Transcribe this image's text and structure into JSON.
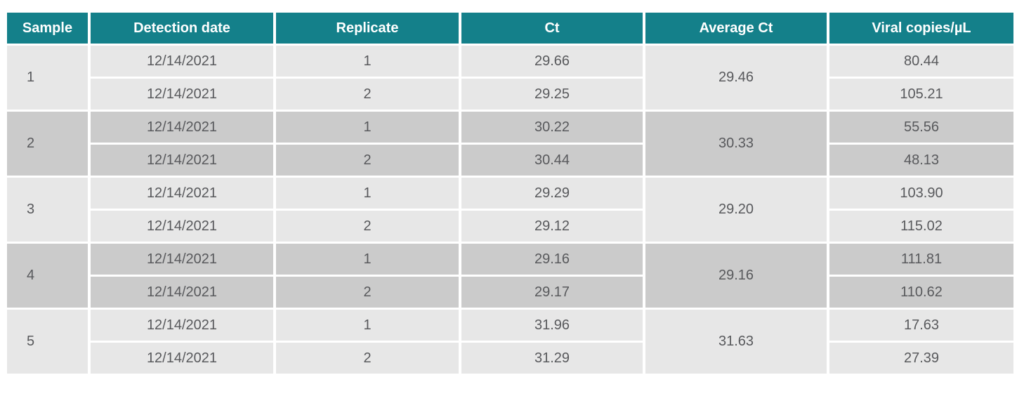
{
  "table": {
    "columns": [
      "Sample",
      "Detection date",
      "Replicate",
      "Ct",
      "Average Ct",
      "Viral copies/µL"
    ],
    "groups": [
      {
        "sample": "1",
        "average_ct": "29.46",
        "rows": [
          {
            "date": "12/14/2021",
            "replicate": "1",
            "ct": "29.66",
            "viral_copies": "80.44"
          },
          {
            "date": "12/14/2021",
            "replicate": "2",
            "ct": "29.25",
            "viral_copies": "105.21"
          }
        ]
      },
      {
        "sample": "2",
        "average_ct": "30.33",
        "rows": [
          {
            "date": "12/14/2021",
            "replicate": "1",
            "ct": "30.22",
            "viral_copies": "55.56"
          },
          {
            "date": "12/14/2021",
            "replicate": "2",
            "ct": "30.44",
            "viral_copies": "48.13"
          }
        ]
      },
      {
        "sample": "3",
        "average_ct": "29.20",
        "rows": [
          {
            "date": "12/14/2021",
            "replicate": "1",
            "ct": "29.29",
            "viral_copies": "103.90"
          },
          {
            "date": "12/14/2021",
            "replicate": "2",
            "ct": "29.12",
            "viral_copies": "115.02"
          }
        ]
      },
      {
        "sample": "4",
        "average_ct": "29.16",
        "rows": [
          {
            "date": "12/14/2021",
            "replicate": "1",
            "ct": "29.16",
            "viral_copies": "111.81"
          },
          {
            "date": "12/14/2021",
            "replicate": "2",
            "ct": "29.17",
            "viral_copies": "110.62"
          }
        ]
      },
      {
        "sample": "5",
        "average_ct": "31.63",
        "rows": [
          {
            "date": "12/14/2021",
            "replicate": "1",
            "ct": "31.96",
            "viral_copies": "17.63"
          },
          {
            "date": "12/14/2021",
            "replicate": "2",
            "ct": "31.29",
            "viral_copies": "27.39"
          }
        ]
      }
    ],
    "colors": {
      "header_bg": "#14808a",
      "header_text": "#ffffff",
      "row_light": "#e7e7e7",
      "row_dark": "#cbcbcb",
      "cell_text": "#58595c",
      "page_bg": "#ffffff"
    }
  }
}
